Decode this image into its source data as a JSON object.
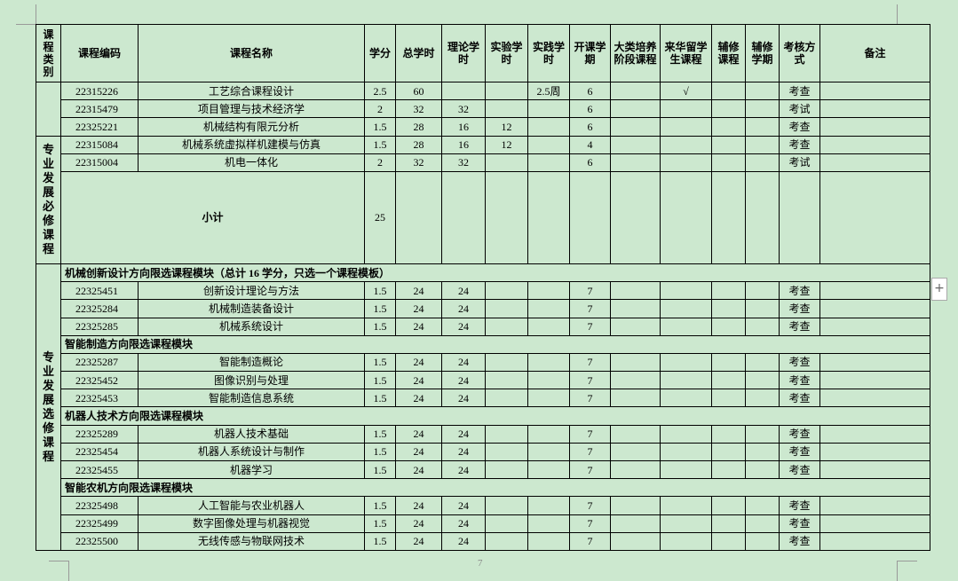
{
  "header": [
    "课程类别",
    "课程编码",
    "课程名称",
    "学分",
    "总学时",
    "理论学时",
    "实验学时",
    "实践学时",
    "开课学期",
    "大类培养阶段课程",
    "来华留学生课程",
    "辅修课程",
    "辅修学期",
    "考核方式",
    "备注"
  ],
  "sections": [
    {
      "name": null,
      "rows": [
        {
          "cells": [
            "22315226",
            "工艺综合课程设计",
            2.5,
            60,
            null,
            null,
            "2.5周",
            6,
            null,
            "√",
            null,
            null,
            "考查",
            null
          ]
        },
        {
          "cells": [
            "22315479",
            "项目管理与技术经济学",
            2,
            32,
            32,
            null,
            null,
            6,
            null,
            null,
            null,
            null,
            "考试",
            null
          ]
        },
        {
          "cells": [
            "22325221",
            "机械结构有限元分析",
            1.5,
            28,
            16,
            12,
            null,
            6,
            null,
            null,
            null,
            null,
            "考查",
            null
          ]
        }
      ]
    },
    {
      "name": "专业发展必修课程",
      "rows": [
        {
          "cells": [
            "22315084",
            "机械系统虚拟样机建模与仿真",
            1.5,
            28,
            16,
            12,
            null,
            4,
            null,
            null,
            null,
            null,
            "考查",
            null
          ]
        },
        {
          "cells": [
            "22315004",
            "机电一体化",
            2,
            32,
            32,
            null,
            null,
            6,
            null,
            null,
            null,
            null,
            "考试",
            null
          ]
        },
        {
          "subtotal": "小计",
          "credit": 25
        }
      ]
    },
    {
      "name": "专业发展选修课程",
      "rows": [
        {
          "module": "机械创新设计方向限选课程模块（总计 16 学分，只选一个课程模板）"
        },
        {
          "cells": [
            "22325451",
            "创新设计理论与方法",
            1.5,
            24,
            24,
            null,
            null,
            7,
            null,
            null,
            null,
            null,
            "考查",
            null
          ]
        },
        {
          "cells": [
            "22325284",
            "机械制造装备设计",
            1.5,
            24,
            24,
            null,
            null,
            7,
            null,
            null,
            null,
            null,
            "考查",
            null
          ]
        },
        {
          "cells": [
            "22325285",
            "机械系统设计",
            1.5,
            24,
            24,
            null,
            null,
            7,
            null,
            null,
            null,
            null,
            "考查",
            null
          ]
        },
        {
          "module": "智能制造方向限选课程模块"
        },
        {
          "cells": [
            "22325287",
            "智能制造概论",
            1.5,
            24,
            24,
            null,
            null,
            7,
            null,
            null,
            null,
            null,
            "考查",
            null
          ]
        },
        {
          "cells": [
            "22325452",
            "图像识别与处理",
            1.5,
            24,
            24,
            null,
            null,
            7,
            null,
            null,
            null,
            null,
            "考查",
            null
          ]
        },
        {
          "cells": [
            "22325453",
            "智能制造信息系统",
            1.5,
            24,
            24,
            null,
            null,
            7,
            null,
            null,
            null,
            null,
            "考查",
            null
          ]
        },
        {
          "module": "机器人技术方向限选课程模块"
        },
        {
          "cells": [
            "22325289",
            "机器人技术基础",
            1.5,
            24,
            24,
            null,
            null,
            7,
            null,
            null,
            null,
            null,
            "考查",
            null
          ]
        },
        {
          "cells": [
            "22325454",
            "机器人系统设计与制作",
            1.5,
            24,
            24,
            null,
            null,
            7,
            null,
            null,
            null,
            null,
            "考查",
            null
          ]
        },
        {
          "cells": [
            "22325455",
            "机器学习",
            1.5,
            24,
            24,
            null,
            null,
            7,
            null,
            null,
            null,
            null,
            "考查",
            null
          ]
        },
        {
          "module": "智能农机方向限选课程模块"
        },
        {
          "cells": [
            "22325498",
            "人工智能与农业机器人",
            1.5,
            24,
            24,
            null,
            null,
            7,
            null,
            null,
            null,
            null,
            "考查",
            null
          ]
        },
        {
          "cells": [
            "22325499",
            "数字图像处理与机器视觉",
            1.5,
            24,
            24,
            null,
            null,
            7,
            null,
            null,
            null,
            null,
            "考查",
            null
          ]
        },
        {
          "cells": [
            "22325500",
            "无线传感与物联网技术",
            1.5,
            24,
            24,
            null,
            null,
            7,
            null,
            null,
            null,
            null,
            "考查",
            null
          ]
        }
      ]
    }
  ],
  "page_number": "7"
}
